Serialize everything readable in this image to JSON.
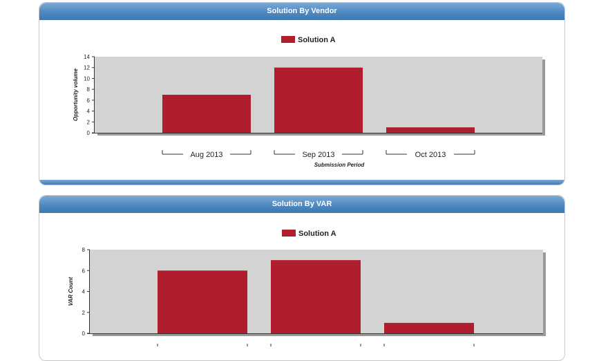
{
  "colors": {
    "bar": "#b01e2d",
    "plot_bg": "#d3d3d3",
    "header": "#4f89c2"
  },
  "panels": [
    {
      "title": "Solution By Vendor"
    },
    {
      "title": "Solution By VAR"
    }
  ],
  "chart_data": [
    {
      "type": "bar",
      "title": "Solution By Vendor",
      "categories": [
        "Aug 2013",
        "Sep 2013",
        "Oct 2013"
      ],
      "series": [
        {
          "name": "Solution A",
          "values": [
            7,
            12,
            1
          ]
        }
      ],
      "xlabel": "Submission Period",
      "ylabel": "Opportunity volume",
      "ylim": [
        0,
        14
      ],
      "yticks": [
        "0",
        "2",
        "4",
        "6",
        "8",
        "10",
        "12",
        "14"
      ],
      "legend": "top-center",
      "grid": false
    },
    {
      "type": "bar",
      "title": "Solution By VAR",
      "categories": [
        "",
        "",
        ""
      ],
      "series": [
        {
          "name": "Solution A",
          "values": [
            6,
            7,
            1
          ]
        }
      ],
      "xlabel": "",
      "ylabel": "VAR Count",
      "ylim": [
        0,
        8
      ],
      "yticks": [
        "0",
        "2",
        "4",
        "6",
        "8"
      ],
      "legend": "top-center",
      "grid": false
    }
  ]
}
